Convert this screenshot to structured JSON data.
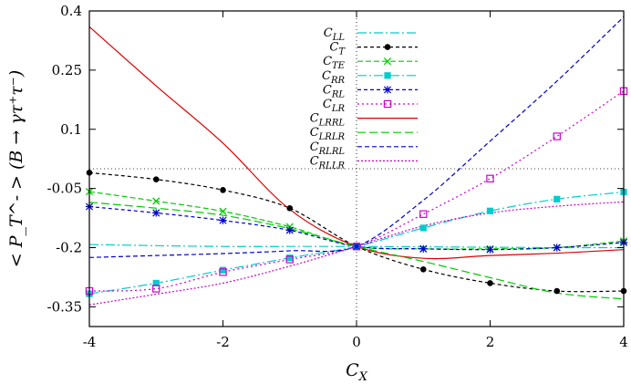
{
  "chart_data": {
    "type": "line",
    "title": "",
    "xlabel": "C_X",
    "ylabel": "< P_T^- > (B → γτ⁺τ⁻)",
    "xlim": [
      -4,
      4
    ],
    "ylim": [
      -0.4,
      0.4
    ],
    "xticks": [
      -4,
      -2,
      0,
      2,
      4
    ],
    "xtick_labels": [
      "-4",
      "-2",
      "0",
      "2",
      "4"
    ],
    "yticks": [
      -0.35,
      -0.2,
      -0.05,
      0.1,
      0.25,
      0.4
    ],
    "ytick_labels": [
      "-0.35",
      "-0.2",
      "-0.05",
      "0.1",
      "0.25",
      "0.4"
    ],
    "reference_lines": {
      "y": 0.0,
      "x": 0.0
    },
    "grid": false,
    "legend_position": "top-center",
    "x": [
      -4,
      -3,
      -2,
      -1,
      0,
      1,
      2,
      3,
      4
    ],
    "series": [
      {
        "name": "C_LL",
        "label_main": "C",
        "label_sub": "LL",
        "color": "#00cccc",
        "dash": "10,3,2,3",
        "marker": "none",
        "values": [
          -0.192,
          -0.195,
          -0.197,
          -0.197,
          -0.197,
          -0.198,
          -0.199,
          -0.2,
          -0.2
        ]
      },
      {
        "name": "C_T",
        "label_main": "C",
        "label_sub": "T",
        "color": "#000000",
        "dash": "4,3",
        "marker": "circle",
        "values": [
          -0.01,
          -0.027,
          -0.054,
          -0.1,
          -0.197,
          -0.255,
          -0.29,
          -0.31,
          -0.31
        ]
      },
      {
        "name": "C_TE",
        "label_main": "C",
        "label_sub": "TE",
        "color": "#00cc00",
        "dash": "6,3",
        "marker": "x",
        "values": [
          -0.058,
          -0.082,
          -0.108,
          -0.147,
          -0.197,
          -0.203,
          -0.203,
          -0.2,
          -0.183
        ]
      },
      {
        "name": "C_RR",
        "label_main": "C",
        "label_sub": "RR",
        "color": "#00cccc",
        "dash": "10,3,2,3",
        "marker": "filled-square",
        "values": [
          -0.317,
          -0.29,
          -0.257,
          -0.226,
          -0.197,
          -0.15,
          -0.107,
          -0.077,
          -0.059
        ]
      },
      {
        "name": "C_RL",
        "label_main": "C",
        "label_sub": "RL",
        "color": "#0000cc",
        "dash": "4,3",
        "marker": "asterisk",
        "values": [
          -0.096,
          -0.112,
          -0.131,
          -0.156,
          -0.197,
          -0.203,
          -0.205,
          -0.2,
          -0.187
        ]
      },
      {
        "name": "C_LR",
        "label_main": "C",
        "label_sub": "LR",
        "color": "#cc00cc",
        "dash": "2,3",
        "marker": "open-square",
        "values": [
          -0.31,
          -0.304,
          -0.262,
          -0.23,
          -0.197,
          -0.115,
          -0.025,
          0.082,
          0.197
        ]
      },
      {
        "name": "C_LRRL",
        "label_main": "C",
        "label_sub": "LRRL",
        "color": "#dd0000",
        "dash": "",
        "marker": "none",
        "values": [
          0.36,
          0.21,
          0.065,
          -0.103,
          -0.197,
          -0.227,
          -0.22,
          -0.214,
          -0.205
        ]
      },
      {
        "name": "C_LRLR",
        "label_main": "C",
        "label_sub": "LRLR",
        "color": "#00cc00",
        "dash": "9,4",
        "marker": "none",
        "values": [
          -0.085,
          -0.1,
          -0.118,
          -0.152,
          -0.197,
          -0.235,
          -0.276,
          -0.315,
          -0.33
        ]
      },
      {
        "name": "C_RLRL",
        "label_main": "C",
        "label_sub": "RLRL",
        "color": "#0000cc",
        "dash": "5,3",
        "marker": "none",
        "values": [
          -0.225,
          -0.22,
          -0.215,
          -0.208,
          -0.197,
          -0.08,
          0.07,
          0.222,
          0.385
        ]
      },
      {
        "name": "C_RLLR",
        "label_main": "C",
        "label_sub": "RLLR",
        "color": "#cc00cc",
        "dash": "2,2",
        "marker": "none",
        "values": [
          -0.345,
          -0.318,
          -0.29,
          -0.247,
          -0.197,
          -0.145,
          -0.112,
          -0.095,
          -0.084
        ]
      }
    ]
  }
}
